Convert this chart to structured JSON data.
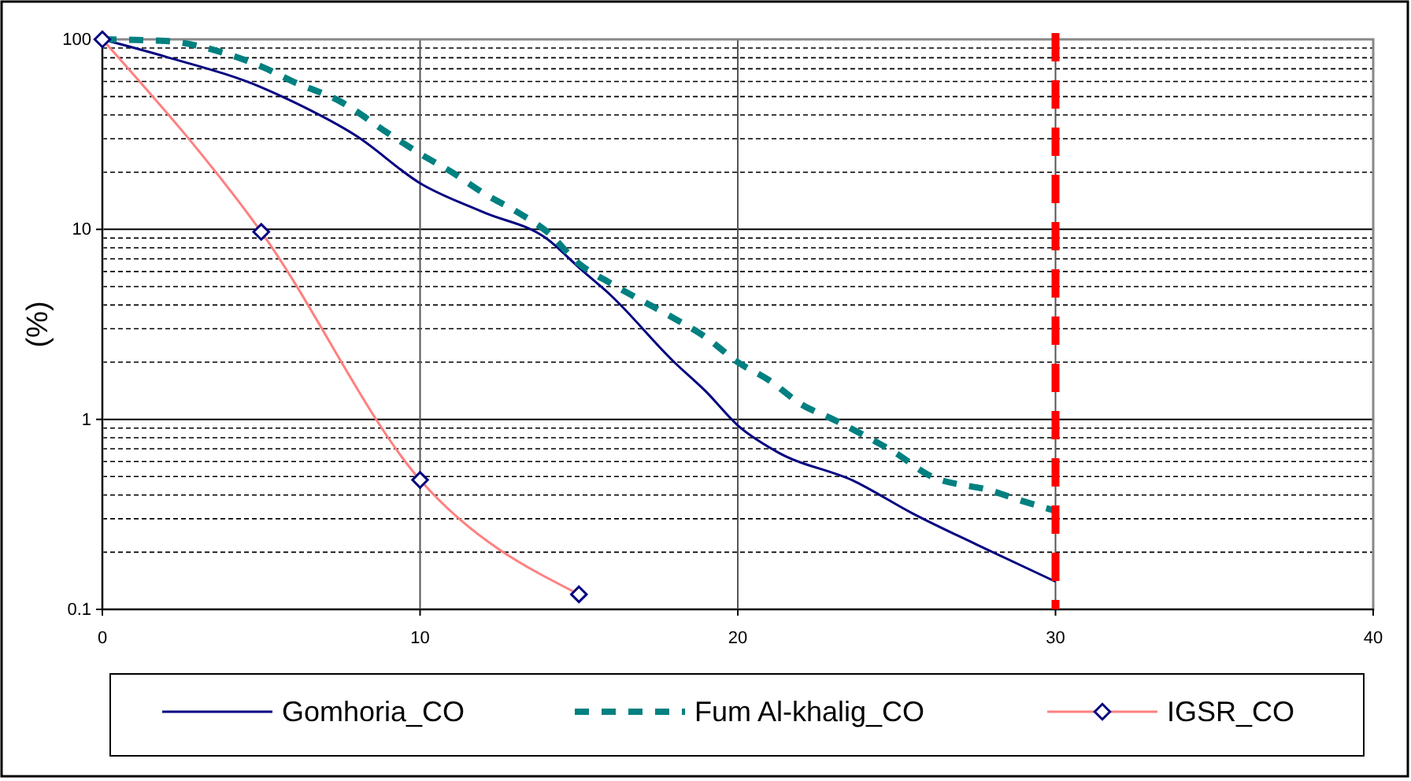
{
  "chart_data": {
    "type": "line",
    "ylabel": "(%)",
    "log": "y",
    "grid": true,
    "legend": "bottom",
    "xlim": [
      0,
      40
    ],
    "xticks": [
      0,
      10,
      20,
      30,
      40
    ],
    "ylim": [
      0.1,
      100
    ],
    "yticks": [
      0.1,
      1,
      10,
      100
    ],
    "series": [
      {
        "name": "Gomhoria_CO",
        "color": "#000080",
        "line_style": "solid",
        "marker": "none",
        "x": [
          0,
          2,
          5,
          6,
          8,
          10,
          12,
          14,
          15,
          16,
          18,
          19,
          20,
          21.2,
          23.7,
          25.5,
          27.5,
          30
        ],
        "values": [
          100,
          81,
          56,
          47,
          31,
          17.5,
          12.3,
          8.9,
          6.3,
          4.5,
          2,
          1.4,
          0.93,
          0.68,
          0.47,
          0.32,
          0.22,
          0.14
        ]
      },
      {
        "name": "Fum Al-khalig_CO",
        "color": "#008080",
        "line_style": "dashed",
        "marker": "none",
        "x": [
          0,
          2,
          4,
          5,
          6,
          7.5,
          9,
          10,
          11,
          12,
          13,
          14,
          15,
          16,
          17,
          18,
          19,
          20,
          21,
          22,
          23,
          24,
          25,
          26,
          28,
          29,
          30
        ],
        "values": [
          100,
          98,
          83,
          72,
          60,
          47,
          32,
          25,
          20,
          15.5,
          12.5,
          9.7,
          6.6,
          5.2,
          4.2,
          3.4,
          2.7,
          2,
          1.6,
          1.2,
          1,
          0.82,
          0.66,
          0.51,
          0.42,
          0.37,
          0.33
        ]
      },
      {
        "name": "IGSR_CO",
        "color": "#ff8080",
        "line_style": "solid",
        "marker": "diamond",
        "x": [
          0,
          5,
          10,
          15
        ],
        "values": [
          100,
          9.7,
          0.48,
          0.12
        ]
      }
    ],
    "ref_lines": [
      {
        "axis": "x",
        "value": 30,
        "color": "#ff0000",
        "line_style": "dashed"
      }
    ]
  }
}
